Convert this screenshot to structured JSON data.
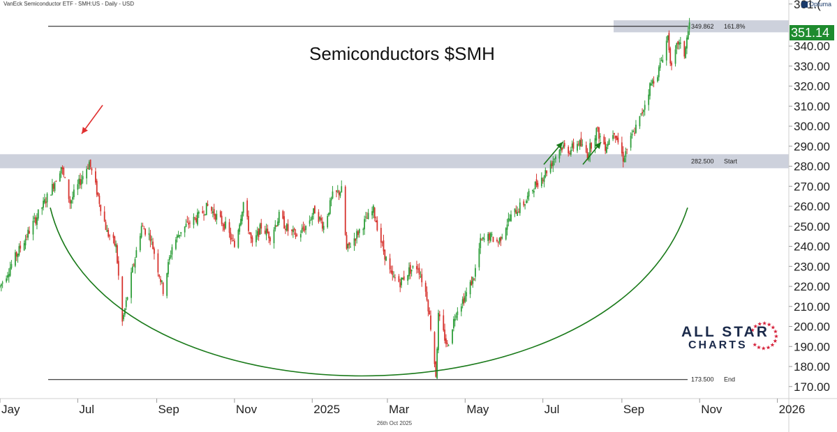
{
  "header": {
    "text": "VanEck Semiconductor ETF - SMH:US - Daily - USD"
  },
  "brand": {
    "text": "Optuma"
  },
  "footer": {
    "date": "26th Oct 2025"
  },
  "logo": {
    "line1": "ALL STAR",
    "line2": "CHARTS"
  },
  "last_price": {
    "label": "351.14",
    "color": "#1e8b2e"
  },
  "colors": {
    "up": "#2e9e3a",
    "down": "#d6332e",
    "arc": "#1a7a1a",
    "arrow_red": "#e03030",
    "arrow_green": "#1a7a1a",
    "band": "#c8ccd8"
  },
  "chart_data": {
    "type": "candlestick",
    "title": "Semiconductors $SMH",
    "x_axis": {
      "tick_labels": [
        "Jay",
        "Jul",
        "Sep",
        "Nov",
        "2025",
        "Mar",
        "May",
        "Jul",
        "Sep",
        "Nov",
        "2026"
      ],
      "range": [
        "2024-05-01",
        "2026-01-10"
      ]
    },
    "y_axis": {
      "ticks": [
        170,
        180,
        190,
        200,
        210,
        220,
        230,
        240,
        250,
        260,
        270,
        280,
        290,
        300,
        310,
        320,
        330,
        340,
        361
      ],
      "tick_labels": [
        "170.00",
        "180.00",
        "190.00",
        "200.00",
        "210.00",
        "220.00",
        "230.00",
        "240.00",
        "250.00",
        "260.00",
        "270.00",
        "280.00",
        "290.00",
        "300.00",
        "310.00",
        "320.00",
        "330.00",
        "340.00",
        "361.("
      ],
      "range": [
        164,
        363
      ]
    },
    "levels": [
      {
        "value": 349.862,
        "label": "349.862",
        "tag": "161.8%"
      },
      {
        "value": 282.5,
        "label": "282.500",
        "tag": "Start"
      },
      {
        "value": 173.5,
        "label": "173.500",
        "tag": "End"
      }
    ],
    "last_value": 351.14,
    "price_path": [
      [
        "2024-05-01",
        220
      ],
      [
        "2024-05-15",
        237
      ],
      [
        "2024-05-30",
        255
      ],
      [
        "2024-06-10",
        268
      ],
      [
        "2024-06-18",
        280
      ],
      [
        "2024-06-25",
        262
      ],
      [
        "2024-07-01",
        270
      ],
      [
        "2024-07-10",
        282
      ],
      [
        "2024-07-17",
        265
      ],
      [
        "2024-07-24",
        247
      ],
      [
        "2024-07-31",
        240
      ],
      [
        "2024-08-05",
        202
      ],
      [
        "2024-08-12",
        225
      ],
      [
        "2024-08-20",
        250
      ],
      [
        "2024-08-27",
        245
      ],
      [
        "2024-09-06",
        218
      ],
      [
        "2024-09-13",
        240
      ],
      [
        "2024-09-20",
        248
      ],
      [
        "2024-09-27",
        252
      ],
      [
        "2024-10-04",
        255
      ],
      [
        "2024-10-11",
        260
      ],
      [
        "2024-10-18",
        255
      ],
      [
        "2024-10-25",
        250
      ],
      [
        "2024-11-01",
        240
      ],
      [
        "2024-11-08",
        262
      ],
      [
        "2024-11-15",
        240
      ],
      [
        "2024-11-22",
        250
      ],
      [
        "2024-11-29",
        245
      ],
      [
        "2024-12-06",
        255
      ],
      [
        "2024-12-13",
        248
      ],
      [
        "2024-12-20",
        245
      ],
      [
        "2024-12-27",
        250
      ],
      [
        "2025-01-03",
        258
      ],
      [
        "2025-01-10",
        250
      ],
      [
        "2025-01-17",
        265
      ],
      [
        "2025-01-24",
        268
      ],
      [
        "2025-01-28",
        238
      ],
      [
        "2025-02-04",
        245
      ],
      [
        "2025-02-11",
        252
      ],
      [
        "2025-02-18",
        258
      ],
      [
        "2025-02-25",
        240
      ],
      [
        "2025-03-04",
        225
      ],
      [
        "2025-03-11",
        222
      ],
      [
        "2025-03-18",
        228
      ],
      [
        "2025-03-25",
        230
      ],
      [
        "2025-04-01",
        215
      ],
      [
        "2025-04-04",
        200
      ],
      [
        "2025-04-08",
        176
      ],
      [
        "2025-04-10",
        205
      ],
      [
        "2025-04-17",
        190
      ],
      [
        "2025-04-24",
        208
      ],
      [
        "2025-05-01",
        215
      ],
      [
        "2025-05-08",
        225
      ],
      [
        "2025-05-13",
        242
      ],
      [
        "2025-05-20",
        245
      ],
      [
        "2025-05-27",
        242
      ],
      [
        "2025-06-03",
        252
      ],
      [
        "2025-06-10",
        258
      ],
      [
        "2025-06-17",
        262
      ],
      [
        "2025-06-24",
        270
      ],
      [
        "2025-07-01",
        275
      ],
      [
        "2025-07-08",
        282
      ],
      [
        "2025-07-15",
        290
      ],
      [
        "2025-07-22",
        288
      ],
      [
        "2025-07-29",
        292
      ],
      [
        "2025-08-05",
        286
      ],
      [
        "2025-08-12",
        298
      ],
      [
        "2025-08-19",
        290
      ],
      [
        "2025-08-26",
        298
      ],
      [
        "2025-09-02",
        284
      ],
      [
        "2025-09-09",
        295
      ],
      [
        "2025-09-16",
        305
      ],
      [
        "2025-09-23",
        320
      ],
      [
        "2025-09-30",
        328
      ],
      [
        "2025-10-07",
        345
      ],
      [
        "2025-10-10",
        328
      ],
      [
        "2025-10-15",
        342
      ],
      [
        "2025-10-20",
        336
      ],
      [
        "2025-10-24",
        351
      ]
    ]
  }
}
